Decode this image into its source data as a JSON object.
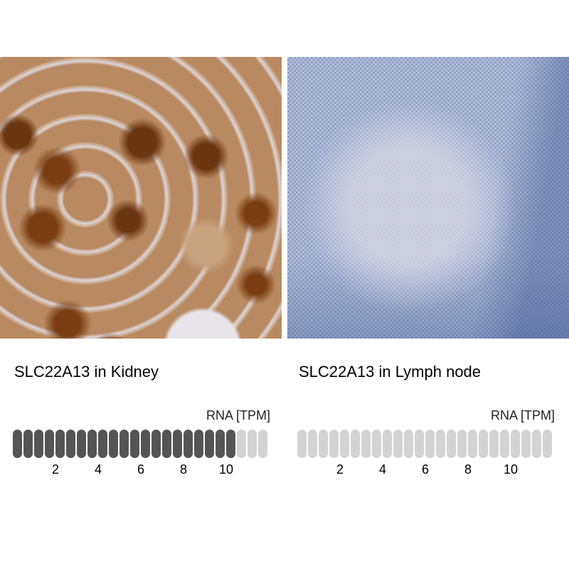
{
  "panels": [
    {
      "title": "SLC22A13 in Kidney",
      "image": "kidney-ihc-brown-staining",
      "unit": "RNA [TPM]",
      "rna_tpm": 10.5,
      "filled_segments": 21,
      "total_segments": 24,
      "ticks": [
        "2",
        "4",
        "6",
        "8",
        "10"
      ],
      "fill_color": "#555555"
    },
    {
      "title": "SLC22A13 in Lymph node",
      "image": "lymph-node-ihc-blue-negative",
      "unit": "RNA [TPM]",
      "rna_tpm": 0,
      "filled_segments": 0,
      "total_segments": 24,
      "ticks": [
        "2",
        "4",
        "6",
        "8",
        "10"
      ],
      "fill_color": "#555555"
    }
  ],
  "colors": {
    "empty_segment": "#d3d3d3"
  }
}
